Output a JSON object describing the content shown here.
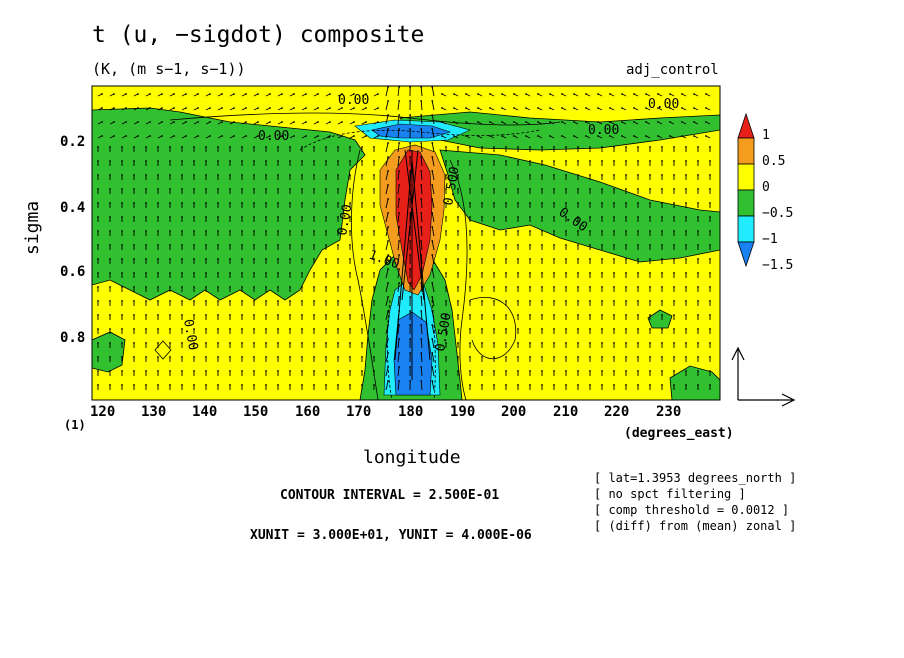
{
  "chart_data": {
    "type": "heatmap",
    "title": "t (u, −sigdot) composite",
    "subtitle": "(K, (m s−1, s−1))",
    "case_label": "adj_control",
    "xlabel": "longitude",
    "xunits": "(degrees_east)",
    "ylabel": "sigma",
    "page_marker": "(1)",
    "xlim": [
      117,
      240
    ],
    "ylim": [
      0.99,
      0.05
    ],
    "x_ticks": [
      "120",
      "130",
      "140",
      "150",
      "160",
      "170",
      "180",
      "190",
      "200",
      "210",
      "220",
      "230"
    ],
    "y_ticks": [
      "0.2",
      "0.4",
      "0.6",
      "0.8"
    ],
    "colorbar": {
      "labels": [
        "1",
        "0.5",
        "0",
        "−0.5",
        "−1",
        "−1.5"
      ],
      "colors": [
        "#e8201a",
        "#f39c1e",
        "#fefe00",
        "#30c030",
        "#20ecfe",
        "#1a82f0"
      ]
    },
    "contour_labels": [
      "0.00",
      "0.00",
      "0.00",
      "0.00",
      "0.00",
      "0.00",
      "0.500",
      "0.500",
      "1.00",
      "0.00"
    ],
    "contour_interval": "CONTOUR INTERVAL = 2.500E-01",
    "xy_units": "XUNIT = 3.000E+01, YUNIT = 4.000E-06",
    "notes": [
      "[ lat=1.3953 degrees_north ]",
      "[ no spct filtering ]",
      "[ comp threshold = 0.0012 ]",
      "[ (diff) from (mean) zonal ]"
    ]
  }
}
